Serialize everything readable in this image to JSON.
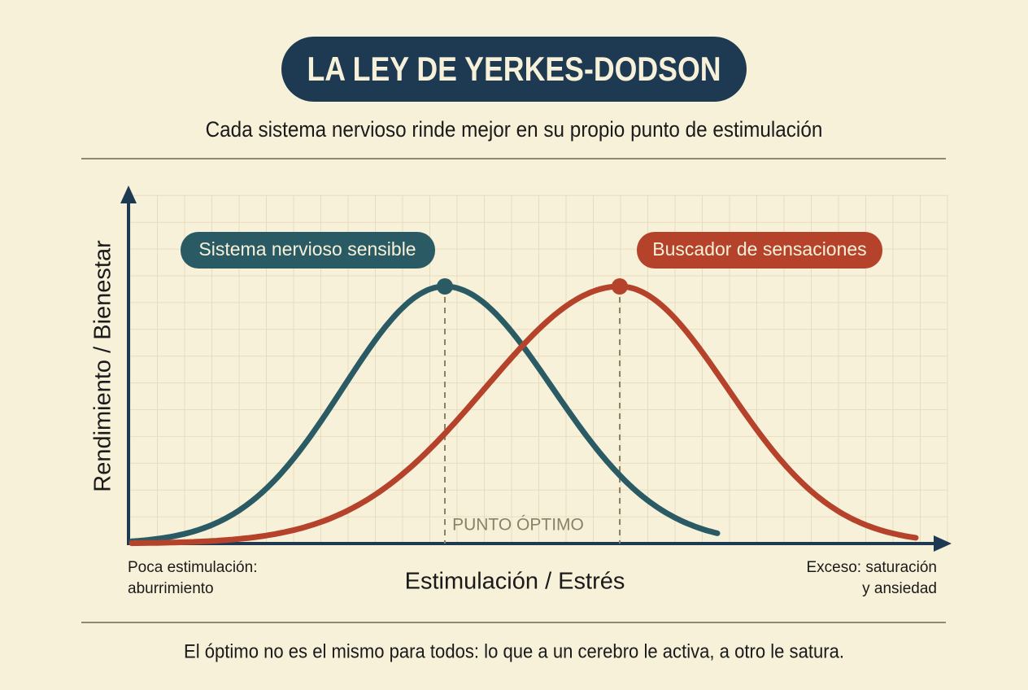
{
  "header": {
    "title": "LA LEY DE YERKES-DODSON",
    "subtitle": "Cada sistema nervioso rinde mejor en su propio punto de estimulación"
  },
  "diagram": {
    "y_axis_label": "Rendimiento / Bienestar",
    "x_axis_label": "Estimulación / Estrés",
    "curves": [
      {
        "label": "Sistema nervioso sensible"
      },
      {
        "label": "Buscador de sensaciones"
      }
    ],
    "optimum_label": "PUNTO ÓPTIMO",
    "low_end_label": [
      "Poca estimulación:",
      "aburrimiento"
    ],
    "high_end_label": [
      "Exceso: saturación",
      "y ansiedad"
    ]
  },
  "footer": {
    "text": "El óptimo no es el mismo para todos: lo que a un cerebro le activa, a otro le satura."
  }
}
